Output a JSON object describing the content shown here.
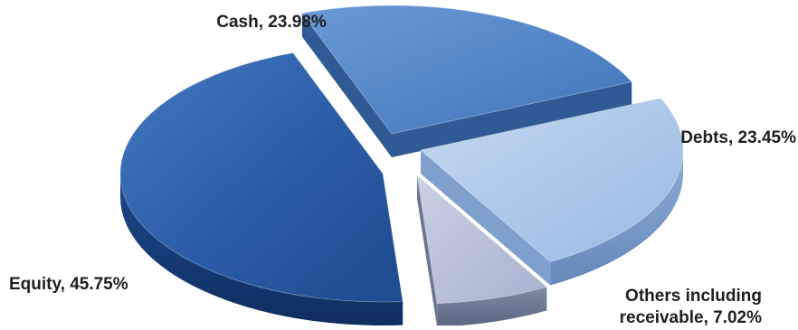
{
  "chart_data": {
    "type": "pie",
    "style": "3d-exploded",
    "slices": [
      {
        "name": "Cash",
        "value": 23.98,
        "label": "Cash, 23.98%",
        "color": "#4f83c4"
      },
      {
        "name": "Debts",
        "value": 23.45,
        "label": "Debts, 23.45%",
        "color": "#a9c6ea"
      },
      {
        "name": "Others including receivable",
        "value": 7.02,
        "label_lines": [
          "Others including",
          "receivable, 7.02%"
        ],
        "color": "#b4bfd9"
      },
      {
        "name": "Equity",
        "value": 45.75,
        "label": "Equity, 45.75%",
        "color": "#24539b"
      }
    ],
    "legend": "none"
  }
}
